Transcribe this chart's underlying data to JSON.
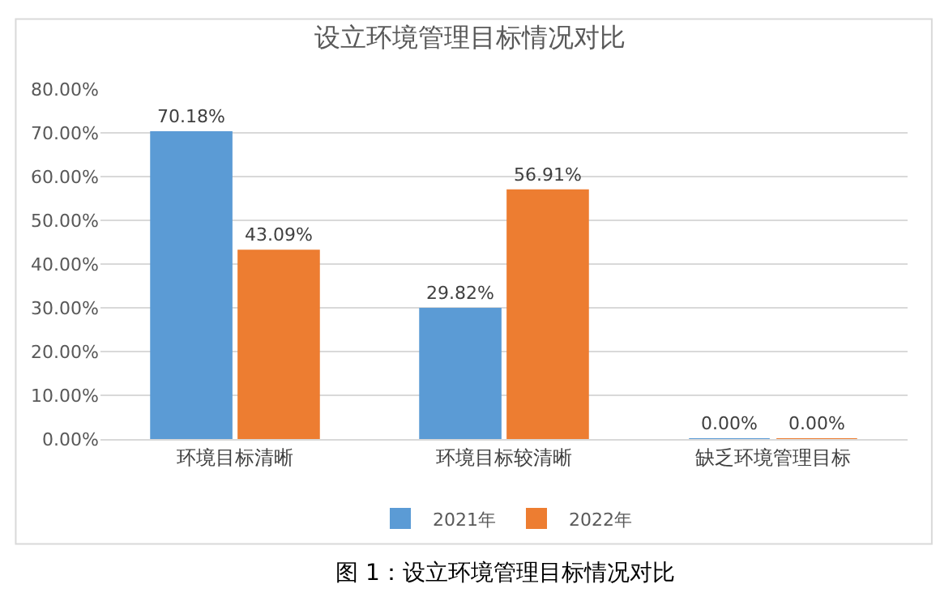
{
  "chart_data": {
    "type": "bar",
    "title": "设立环境管理目标情况对比",
    "categories": [
      "环境目标清晰",
      "环境目标较清晰",
      "缺乏环境管理目标"
    ],
    "series": [
      {
        "name": "2021年",
        "color": "#5b9bd5",
        "values": [
          70.18,
          29.82,
          0
        ],
        "value_labels": [
          "70.18%",
          "29.82%",
          "0.00%"
        ]
      },
      {
        "name": "2022年",
        "color": "#ed7d31",
        "values": [
          43.09,
          56.91,
          0
        ],
        "value_labels": [
          "43.09%",
          "56.91%",
          "0.00%"
        ]
      }
    ],
    "ylim": [
      0,
      80
    ],
    "yticks": [
      {
        "value": 0,
        "label": "0.00%"
      },
      {
        "value": 10,
        "label": "10.00%"
      },
      {
        "value": 20,
        "label": "20.00%"
      },
      {
        "value": 30,
        "label": "30.00%"
      },
      {
        "value": 40,
        "label": "40.00%"
      },
      {
        "value": 50,
        "label": "50.00%"
      },
      {
        "value": 60,
        "label": "60.00%"
      },
      {
        "value": 70,
        "label": "70.00%"
      },
      {
        "value": 80,
        "label": "80.00%"
      }
    ],
    "grid": "y",
    "legend": "bottom",
    "annotations": [
      "图 1：设立环境管理目标情况对比"
    ]
  }
}
